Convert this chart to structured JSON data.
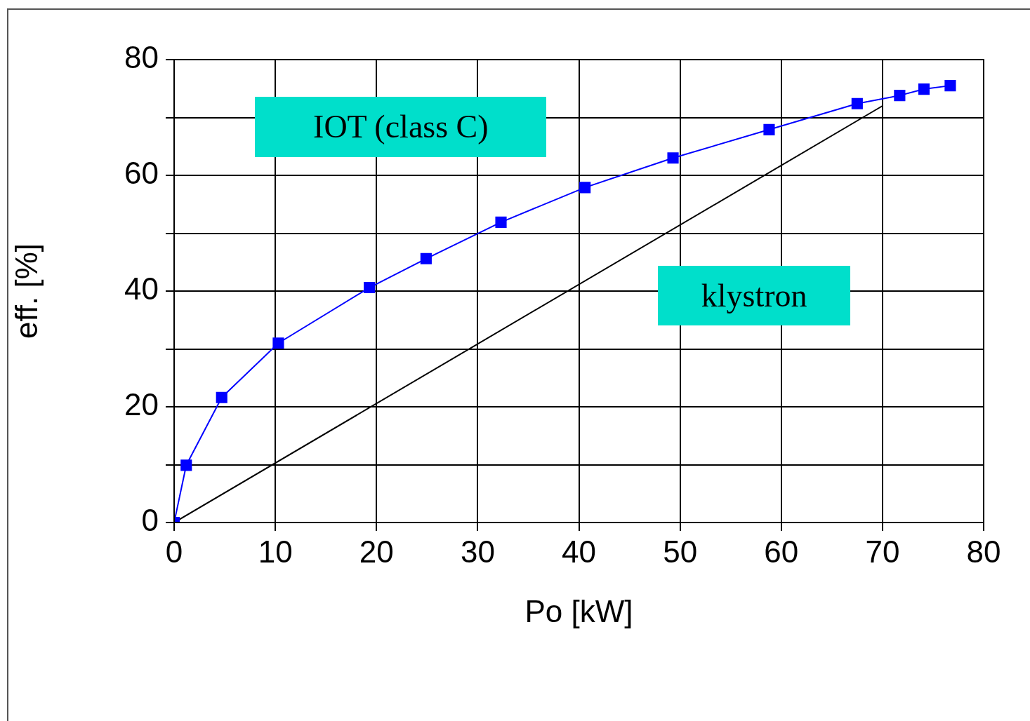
{
  "chart_data": {
    "type": "line",
    "xlabel": "Po [kW]",
    "ylabel": "eff. [%]",
    "xlim": [
      0,
      80
    ],
    "ylim": [
      0,
      80
    ],
    "xticks": [
      0,
      10,
      20,
      30,
      40,
      50,
      60,
      70,
      80
    ],
    "yticks": [
      0,
      {
        "value": 10,
        "label": null
      },
      20,
      {
        "value": 30,
        "label": null
      },
      40,
      {
        "value": 50,
        "label": null
      },
      60,
      {
        "value": 70,
        "label": null
      },
      80
    ],
    "grid": true,
    "legend": false,
    "series": [
      {
        "name": "IOT (class C)",
        "color": "#0000ff",
        "marker": "square",
        "line_style": "solid",
        "x": [
          0,
          1.2,
          4.7,
          10.3,
          19.3,
          24.9,
          32.3,
          40.6,
          49.3,
          58.8,
          67.5,
          71.7,
          74.1,
          76.7
        ],
        "values": [
          0,
          9.9,
          21.6,
          31.0,
          40.6,
          45.6,
          51.9,
          57.9,
          63.0,
          67.9,
          72.4,
          73.8,
          74.9,
          75.5
        ]
      },
      {
        "name": "klystron",
        "color": "#000000",
        "marker": "none",
        "line_style": "solid",
        "x": [
          0,
          70
        ],
        "values": [
          0,
          72
        ]
      }
    ]
  }
}
